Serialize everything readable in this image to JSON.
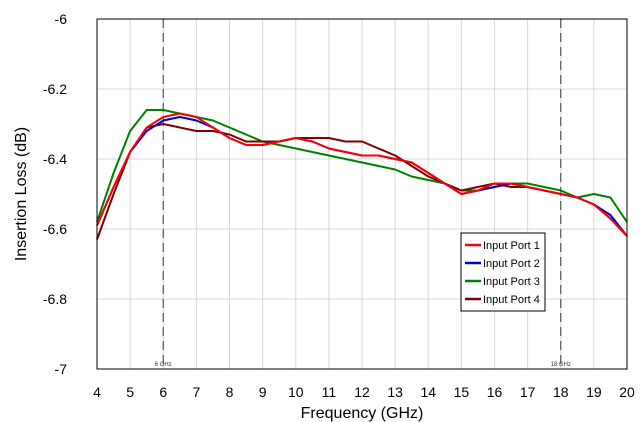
{
  "chart_data": {
    "type": "line",
    "title": "",
    "xlabel": "Frequency (GHz)",
    "ylabel": "Insertion Loss (dB)",
    "xlim": [
      4,
      20
    ],
    "ylim": [
      -7,
      -6
    ],
    "xticks": [
      4,
      5,
      6,
      7,
      8,
      9,
      10,
      11,
      12,
      13,
      14,
      15,
      16,
      17,
      18,
      19,
      20
    ],
    "yticks": [
      -6,
      -6.2,
      -6.4,
      -6.6,
      -6.8,
      -7
    ],
    "ytick_labels": [
      "-6",
      "-6.2",
      "-6.4",
      "-6.6",
      "-6.8",
      "-7"
    ],
    "grid": true,
    "legend_position": "lower-right",
    "markers": [
      {
        "x": 6,
        "label": "6 GHz"
      },
      {
        "x": 18,
        "label": "18 GHz"
      }
    ],
    "series": [
      {
        "name": "Input Port 1",
        "color": "#ff0000",
        "x": [
          4,
          4.5,
          5,
          5.5,
          6,
          6.5,
          7,
          7.5,
          8,
          8.5,
          9,
          9.5,
          10,
          10.5,
          11,
          11.5,
          12,
          12.5,
          13,
          13.5,
          14,
          14.5,
          15,
          15.5,
          16,
          16.5,
          17,
          17.5,
          18,
          18.5,
          19,
          19.5,
          20
        ],
        "values": [
          -6.59,
          -6.48,
          -6.38,
          -6.31,
          -6.28,
          -6.27,
          -6.28,
          -6.31,
          -6.34,
          -6.36,
          -6.36,
          -6.35,
          -6.34,
          -6.35,
          -6.37,
          -6.38,
          -6.39,
          -6.39,
          -6.4,
          -6.41,
          -6.44,
          -6.47,
          -6.5,
          -6.49,
          -6.47,
          -6.47,
          -6.48,
          -6.49,
          -6.5,
          -6.51,
          -6.53,
          -6.57,
          -6.62
        ]
      },
      {
        "name": "Input Port 2",
        "color": "#0000cc",
        "x": [
          4,
          4.5,
          5,
          5.5,
          6,
          6.5,
          7,
          7.5,
          8,
          8.5,
          9,
          9.5,
          10,
          10.5,
          11,
          11.5,
          12,
          12.5,
          13,
          13.5,
          14,
          14.5,
          15,
          15.5,
          16,
          16.5,
          17,
          17.5,
          18,
          18.5,
          19,
          19.5,
          20
        ],
        "values": [
          -6.59,
          -6.48,
          -6.38,
          -6.32,
          -6.29,
          -6.28,
          -6.29,
          -6.31,
          -6.34,
          -6.36,
          -6.36,
          -6.35,
          -6.34,
          -6.35,
          -6.37,
          -6.38,
          -6.39,
          -6.39,
          -6.4,
          -6.41,
          -6.44,
          -6.47,
          -6.5,
          -6.49,
          -6.48,
          -6.47,
          -6.48,
          -6.49,
          -6.5,
          -6.51,
          -6.53,
          -6.56,
          -6.62
        ]
      },
      {
        "name": "Input Port 3",
        "color": "#008000",
        "x": [
          4,
          4.5,
          5,
          5.5,
          6,
          6.5,
          7,
          7.5,
          8,
          8.5,
          9,
          9.5,
          10,
          10.5,
          11,
          11.5,
          12,
          12.5,
          13,
          13.5,
          14,
          14.5,
          15,
          15.5,
          16,
          16.5,
          17,
          17.5,
          18,
          18.5,
          19,
          19.5,
          20
        ],
        "values": [
          -6.58,
          -6.44,
          -6.32,
          -6.26,
          -6.26,
          -6.27,
          -6.28,
          -6.29,
          -6.31,
          -6.33,
          -6.35,
          -6.36,
          -6.37,
          -6.38,
          -6.39,
          -6.4,
          -6.41,
          -6.42,
          -6.43,
          -6.45,
          -6.46,
          -6.47,
          -6.49,
          -6.49,
          -6.48,
          -6.47,
          -6.47,
          -6.48,
          -6.49,
          -6.51,
          -6.5,
          -6.51,
          -6.58
        ]
      },
      {
        "name": "Input Port 4",
        "color": "#800000",
        "x": [
          4,
          4.5,
          5,
          5.5,
          6,
          6.5,
          7,
          7.5,
          8,
          8.5,
          9,
          9.5,
          10,
          10.5,
          11,
          11.5,
          12,
          12.5,
          13,
          13.5,
          14,
          14.5,
          15,
          15.5,
          16,
          16.5,
          17,
          17.5,
          18,
          18.5,
          19,
          19.5,
          20
        ],
        "values": [
          -6.63,
          -6.5,
          -6.38,
          -6.31,
          -6.3,
          -6.31,
          -6.32,
          -6.32,
          -6.33,
          -6.35,
          -6.35,
          -6.35,
          -6.34,
          -6.34,
          -6.34,
          -6.35,
          -6.35,
          -6.37,
          -6.39,
          -6.42,
          -6.45,
          -6.47,
          -6.49,
          -6.48,
          -6.47,
          -6.48,
          -6.48,
          -6.49,
          -6.5,
          -6.51,
          -6.53,
          -6.57,
          -6.62
        ]
      }
    ]
  }
}
